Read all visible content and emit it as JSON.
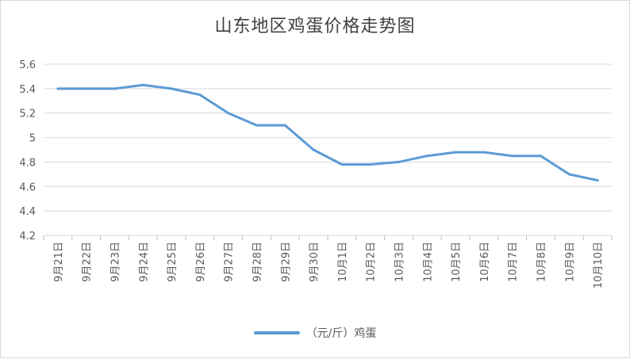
{
  "chart_data": {
    "type": "line",
    "title": "山东地区鸡蛋价格走势图",
    "xlabel": "",
    "ylabel": "",
    "categories": [
      "9月21日",
      "9月22日",
      "9月23日",
      "9月24日",
      "9月25日",
      "9月26日",
      "9月27日",
      "9月28日",
      "9月29日",
      "9月30日",
      "10月1日",
      "10月2日",
      "10月3日",
      "10月4日",
      "10月5日",
      "10月6日",
      "10月7日",
      "10月8日",
      "10月9日",
      "10月10日"
    ],
    "series": [
      {
        "name": "（元/斤）鸡蛋",
        "values": [
          5.4,
          5.4,
          5.4,
          5.43,
          5.4,
          5.35,
          5.2,
          5.1,
          5.1,
          4.9,
          4.78,
          4.78,
          4.8,
          4.85,
          4.88,
          4.88,
          4.85,
          4.85,
          4.7,
          4.65
        ],
        "color": "#5b9bd5"
      }
    ],
    "ylim": [
      4.2,
      5.6
    ],
    "yticks": [
      "4.2",
      "4.4",
      "4.6",
      "4.8",
      "5",
      "5.2",
      "5.4",
      "5.6"
    ],
    "grid": true,
    "legend": "bottom"
  }
}
